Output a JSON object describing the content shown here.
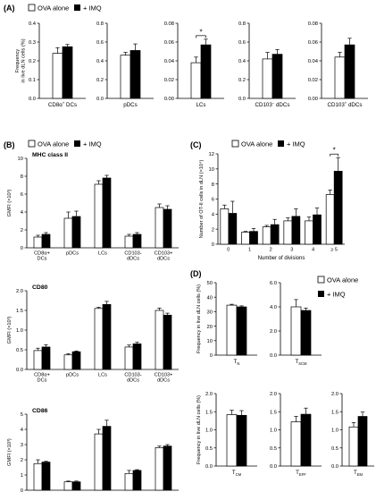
{
  "colors": {
    "ova": "#ffffff",
    "imq": "#000000",
    "stroke": "#000000"
  },
  "legend": {
    "ova": "OVA alone",
    "imq": "+ IMQ"
  },
  "sig_mark": "*",
  "panels": [
    {
      "letter": "(A)",
      "legend_text": true
    },
    {
      "letter": "(B)",
      "legend_text": true
    },
    {
      "letter": "(C)",
      "legend_text": true
    },
    {
      "letter": "(D)",
      "legend_text": true
    }
  ],
  "chart_data": [
    {
      "id": "A1",
      "type": "bar",
      "panel": "A",
      "ylabel": "Frequency\nin live dLN cells (%)",
      "xlabel": "CD8α+ DCs",
      "ylim": [
        0,
        0.4
      ],
      "yticks": [
        "0.0",
        "0.1",
        "0.2",
        "0.3",
        "0.4"
      ],
      "tick_values": [
        0,
        0.1,
        0.2,
        0.3,
        0.4
      ],
      "categories": [
        ""
      ],
      "series": [
        {
          "name": "OVA alone",
          "values": [
            0.24
          ],
          "err": [
            0.03
          ]
        },
        {
          "name": "+ IMQ",
          "values": [
            0.275
          ],
          "err": [
            0.012
          ]
        }
      ]
    },
    {
      "id": "A2",
      "type": "bar",
      "panel": "A",
      "ylabel": "",
      "xlabel": "pDCs",
      "ylim": [
        0,
        0.8
      ],
      "yticks": [
        "0.0",
        "0.2",
        "0.4",
        "0.6",
        "0.8"
      ],
      "tick_values": [
        0,
        0.2,
        0.4,
        0.6,
        0.8
      ],
      "categories": [
        ""
      ],
      "series": [
        {
          "name": "OVA alone",
          "values": [
            0.46
          ],
          "err": [
            0.03
          ]
        },
        {
          "name": "+ IMQ",
          "values": [
            0.51
          ],
          "err": [
            0.07
          ]
        }
      ]
    },
    {
      "id": "A3",
      "type": "bar",
      "panel": "A",
      "ylabel": "",
      "xlabel": "LCs",
      "ylim": [
        0,
        0.08
      ],
      "yticks": [
        "0.00",
        "0.02",
        "0.04",
        "0.06",
        "0.08"
      ],
      "tick_values": [
        0,
        0.02,
        0.04,
        0.06,
        0.08
      ],
      "categories": [
        ""
      ],
      "series": [
        {
          "name": "OVA alone",
          "values": [
            0.038
          ],
          "err": [
            0.006
          ]
        },
        {
          "name": "+ IMQ",
          "values": [
            0.057
          ],
          "err": [
            0.006
          ]
        }
      ],
      "significance": [
        {
          "label": "*"
        }
      ]
    },
    {
      "id": "A4",
      "type": "bar",
      "panel": "A",
      "ylabel": "",
      "xlabel": "CD103- dDCs",
      "ylim": [
        0,
        0.8
      ],
      "yticks": [
        "0.0",
        "0.2",
        "0.4",
        "0.6",
        "0.8"
      ],
      "tick_values": [
        0,
        0.2,
        0.4,
        0.6,
        0.8
      ],
      "categories": [
        ""
      ],
      "series": [
        {
          "name": "OVA alone",
          "values": [
            0.42
          ],
          "err": [
            0.07
          ]
        },
        {
          "name": "+ IMQ",
          "values": [
            0.47
          ],
          "err": [
            0.05
          ]
        }
      ]
    },
    {
      "id": "A5",
      "type": "bar",
      "panel": "A",
      "ylabel": "",
      "xlabel": "CD103+ dDCs",
      "ylim": [
        0,
        0.08
      ],
      "yticks": [
        "0.00",
        "0.02",
        "0.04",
        "0.06",
        "0.08"
      ],
      "tick_values": [
        0,
        0.02,
        0.04,
        0.06,
        0.08
      ],
      "categories": [
        ""
      ],
      "series": [
        {
          "name": "OVA alone",
          "values": [
            0.044
          ],
          "err": [
            0.005
          ]
        },
        {
          "name": "+ IMQ",
          "values": [
            0.057
          ],
          "err": [
            0.007
          ]
        }
      ]
    },
    {
      "id": "B1",
      "type": "bar",
      "panel": "B",
      "subtitle": "MHC class II",
      "ylabel": "GMFI (×10³)",
      "ylim": [
        0,
        10
      ],
      "yticks": [
        "0",
        "2",
        "4",
        "6",
        "8",
        "10"
      ],
      "tick_values": [
        0,
        2,
        4,
        6,
        8,
        10
      ],
      "categories": [
        "CD8α+\nDCs",
        "pDCs",
        "LCs",
        "CD103-\ndDCs",
        "CD103+\ndDCs"
      ],
      "series": [
        {
          "name": "OVA alone",
          "values": [
            1.2,
            3.3,
            7.1,
            1.3,
            4.5
          ],
          "err": [
            0.2,
            0.7,
            0.4,
            0.2,
            0.4
          ]
        },
        {
          "name": "+ IMQ",
          "values": [
            1.5,
            3.5,
            7.8,
            1.5,
            4.3
          ],
          "err": [
            0.2,
            0.6,
            0.3,
            0.2,
            0.4
          ]
        }
      ]
    },
    {
      "id": "B2",
      "type": "bar",
      "panel": "B",
      "subtitle": "CD80",
      "ylabel": "GMFI (×10³)",
      "ylim": [
        0,
        2
      ],
      "yticks": [
        "0.0",
        "0.5",
        "1.0",
        "1.5",
        "2.0"
      ],
      "tick_values": [
        0,
        0.5,
        1,
        1.5,
        2
      ],
      "categories": [
        "CD8α+\nDCs",
        "pDCs",
        "LCs",
        "CD103-\ndDCs",
        "CD103+\ndDCs"
      ],
      "series": [
        {
          "name": "OVA alone",
          "values": [
            0.48,
            0.37,
            1.55,
            0.57,
            1.5
          ],
          "err": [
            0.06,
            0.03,
            0.03,
            0.05,
            0.06
          ]
        },
        {
          "name": "+ IMQ",
          "values": [
            0.57,
            0.45,
            1.65,
            0.65,
            1.38
          ],
          "err": [
            0.06,
            0.02,
            0.08,
            0.04,
            0.05
          ]
        }
      ]
    },
    {
      "id": "B3",
      "type": "bar",
      "panel": "B",
      "subtitle": "CD86",
      "ylabel": "GMFI (×10³)",
      "ylim": [
        0,
        5
      ],
      "yticks": [
        "0",
        "1",
        "2",
        "3",
        "4",
        "5"
      ],
      "tick_values": [
        0,
        1,
        2,
        3,
        4,
        5
      ],
      "categories": [
        "CD8α+\nDCs",
        "pDCs",
        "LCs",
        "CD103-\ndDCs",
        "CD103+\ndDCs"
      ],
      "series": [
        {
          "name": "OVA alone",
          "values": [
            1.75,
            0.55,
            3.7,
            1.1,
            2.8
          ],
          "err": [
            0.25,
            0.05,
            0.3,
            0.2,
            0.1
          ]
        },
        {
          "name": "+ IMQ",
          "values": [
            1.85,
            0.55,
            4.2,
            1.3,
            2.9
          ],
          "err": [
            0.05,
            0.05,
            0.4,
            0.05,
            0.1
          ]
        }
      ]
    },
    {
      "id": "C",
      "type": "bar",
      "panel": "C",
      "ylabel": "Number of OT-II cells in dLN (×10⁴)",
      "xlabel": "Number of divisions",
      "ylim": [
        0,
        12
      ],
      "yticks": [
        "0",
        "2",
        "4",
        "6",
        "8",
        "10",
        "12"
      ],
      "tick_values": [
        0,
        2,
        4,
        6,
        8,
        10,
        12
      ],
      "categories": [
        "0",
        "1",
        "2",
        "3",
        "4",
        "≥ 5"
      ],
      "series": [
        {
          "name": "OVA alone",
          "values": [
            4.7,
            1.6,
            2.3,
            3.1,
            3.1,
            6.6
          ],
          "err": [
            0.5,
            0.1,
            0.2,
            0.4,
            0.5,
            0.6
          ]
        },
        {
          "name": "+ IMQ",
          "values": [
            4.1,
            1.7,
            2.6,
            3.7,
            3.9,
            9.7
          ],
          "err": [
            1.6,
            0.4,
            0.7,
            1.0,
            0.9,
            1.8
          ]
        }
      ],
      "significance": [
        {
          "label": "*"
        }
      ]
    },
    {
      "id": "D1",
      "type": "bar",
      "panel": "D",
      "ylabel": "Frequency in live dLN cells (%)",
      "xlabel": "TN",
      "ylim": [
        0,
        50
      ],
      "yticks": [
        "0",
        "10",
        "20",
        "30",
        "40",
        "50"
      ],
      "tick_values": [
        0,
        10,
        20,
        30,
        40,
        50
      ],
      "categories": [
        ""
      ],
      "series": [
        {
          "name": "OVA alone",
          "values": [
            34.5
          ],
          "err": [
            0.6
          ]
        },
        {
          "name": "+ IMQ",
          "values": [
            33.3
          ],
          "err": [
            0.7
          ]
        }
      ]
    },
    {
      "id": "D2",
      "type": "bar",
      "panel": "D",
      "ylabel": "",
      "xlabel": "TSCM",
      "ylim": [
        0,
        6
      ],
      "yticks": [
        "0.0",
        "2.0",
        "4.0",
        "6.0"
      ],
      "tick_values": [
        0,
        2,
        4,
        6
      ],
      "categories": [
        ""
      ],
      "series": [
        {
          "name": "OVA alone",
          "values": [
            4.0
          ],
          "err": [
            0.6
          ]
        },
        {
          "name": "+ IMQ",
          "values": [
            3.7
          ],
          "err": [
            0.2
          ]
        }
      ]
    },
    {
      "id": "D3",
      "type": "bar",
      "panel": "D",
      "ylabel": "Frequency in live dLN cells (%)",
      "xlabel": "TCM",
      "ylim": [
        0,
        2
      ],
      "yticks": [
        "0.0",
        "0.5",
        "1.0",
        "1.5",
        "2.0"
      ],
      "tick_values": [
        0,
        0.5,
        1,
        1.5,
        2
      ],
      "categories": [
        ""
      ],
      "series": [
        {
          "name": "OVA alone",
          "values": [
            1.42
          ],
          "err": [
            0.12
          ]
        },
        {
          "name": "+ IMQ",
          "values": [
            1.4
          ],
          "err": [
            0.13
          ]
        }
      ]
    },
    {
      "id": "D4",
      "type": "bar",
      "panel": "D",
      "ylabel": "",
      "xlabel": "TEFF",
      "ylim": [
        0,
        2
      ],
      "yticks": [
        "0.0",
        "0.5",
        "1.0",
        "1.5",
        "2.0"
      ],
      "tick_values": [
        0,
        0.5,
        1,
        1.5,
        2
      ],
      "categories": [
        ""
      ],
      "series": [
        {
          "name": "OVA alone",
          "values": [
            1.22
          ],
          "err": [
            0.15
          ]
        },
        {
          "name": "+ IMQ",
          "values": [
            1.43
          ],
          "err": [
            0.17
          ]
        }
      ]
    },
    {
      "id": "D5",
      "type": "bar",
      "panel": "D",
      "ylabel": "",
      "xlabel": "TEM",
      "ylim": [
        0,
        2
      ],
      "yticks": [
        "0.0",
        "0.5",
        "1.0",
        "1.5",
        "2.0"
      ],
      "tick_values": [
        0,
        0.5,
        1,
        1.5,
        2
      ],
      "categories": [
        ""
      ],
      "series": [
        {
          "name": "OVA alone",
          "values": [
            1.08
          ],
          "err": [
            0.12
          ]
        },
        {
          "name": "+ IMQ",
          "values": [
            1.37
          ],
          "err": [
            0.12
          ]
        }
      ]
    }
  ]
}
